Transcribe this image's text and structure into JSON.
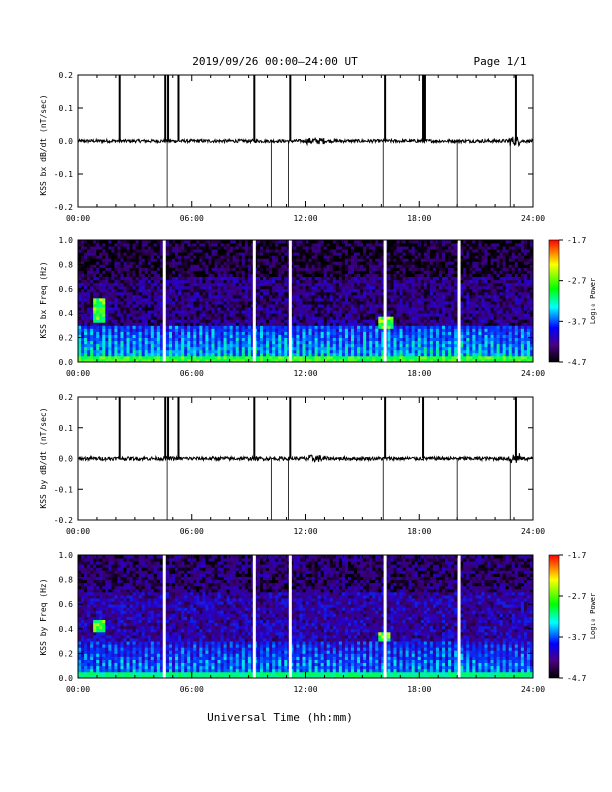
{
  "header": {
    "title": "2019/09/26  00:00–24:00 UT",
    "page": "Page 1/1"
  },
  "xaxis": {
    "label": "Universal Time (hh:mm)",
    "ticks": [
      "00:00",
      "06:00",
      "12:00",
      "18:00",
      "24:00"
    ]
  },
  "colorbar": {
    "label": "Log₁₀ Power",
    "ticks": [
      "-1.7",
      "-2.7",
      "-3.7",
      "-4.7"
    ],
    "colors": [
      "#ff0000",
      "#ffff00",
      "#00ff00",
      "#00ffff",
      "#0000ff",
      "#4b0082",
      "#000000"
    ]
  },
  "chart_data": [
    {
      "type": "line",
      "title": "",
      "xlabel": "",
      "ylabel": "KSS bx dB/dt (nT/sec)",
      "xlim": [
        0,
        24
      ],
      "ylim": [
        -0.2,
        0.2
      ],
      "yticks": [
        "0.2",
        "0.1",
        "0.0",
        "-0.1",
        "-0.2"
      ],
      "baseline": 0.0,
      "noise_amplitude": 0.005,
      "spikes_up": [
        2.2,
        4.6,
        4.75,
        5.3,
        9.3,
        11.2,
        16.2,
        18.2,
        18.3,
        23.1
      ],
      "spikes_down": [
        4.7,
        10.2,
        11.1,
        16.1,
        20.0,
        22.8
      ],
      "line_color": "#000000"
    },
    {
      "type": "heatmap",
      "title": "",
      "xlabel": "",
      "ylabel": "KSS bx Freq (Hz)",
      "xlim": [
        0,
        24
      ],
      "ylim": [
        0.0,
        1.0
      ],
      "yticks": [
        "1.0",
        "0.8",
        "0.6",
        "0.4",
        "0.2",
        "0.0"
      ],
      "zlim": [
        -4.7,
        -1.7
      ],
      "data_gaps": [
        4.55,
        9.3,
        11.2,
        16.2,
        20.1
      ],
      "low_freq_band_power": -2.9,
      "background_power": -4.2,
      "features": [
        {
          "x_start": 0.8,
          "x_end": 1.4,
          "f_low": 0.33,
          "f_high": 0.52
        },
        {
          "x_start": 15.9,
          "x_end": 16.6,
          "f_low": 0.28,
          "f_high": 0.38
        }
      ]
    },
    {
      "type": "line",
      "title": "",
      "xlabel": "",
      "ylabel": "KSS by dB/dt (nT/sec)",
      "xlim": [
        0,
        24
      ],
      "ylim": [
        -0.2,
        0.2
      ],
      "yticks": [
        "0.2",
        "0.1",
        "0.0",
        "-0.1",
        "-0.2"
      ],
      "baseline": 0.0,
      "noise_amplitude": 0.006,
      "spikes_up": [
        2.2,
        4.6,
        4.75,
        5.3,
        9.3,
        11.2,
        16.2,
        18.2,
        23.1
      ],
      "spikes_down": [
        4.7,
        10.2,
        11.1,
        16.1,
        20.0,
        22.8
      ],
      "line_color": "#000000"
    },
    {
      "type": "heatmap",
      "title": "",
      "xlabel": "",
      "ylabel": "KSS by Freq (Hz)",
      "xlim": [
        0,
        24
      ],
      "ylim": [
        0.0,
        1.0
      ],
      "yticks": [
        "1.0",
        "0.8",
        "0.6",
        "0.4",
        "0.2",
        "0.0"
      ],
      "zlim": [
        -4.7,
        -1.7
      ],
      "data_gaps": [
        4.55,
        9.3,
        11.2,
        16.2,
        20.1
      ],
      "low_freq_band_power": -3.1,
      "background_power": -4.0,
      "features": [
        {
          "x_start": 0.8,
          "x_end": 1.4,
          "f_low": 0.38,
          "f_high": 0.48
        },
        {
          "x_start": 15.9,
          "x_end": 16.5,
          "f_low": 0.3,
          "f_high": 0.38
        }
      ]
    }
  ]
}
